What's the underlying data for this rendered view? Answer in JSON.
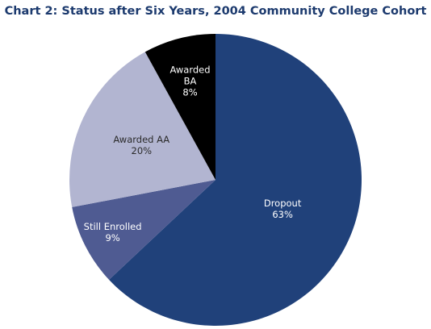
{
  "chart_data": {
    "type": "pie",
    "title": "Chart 2: Status after Six Years, 2004 Community College Cohort",
    "slices": [
      {
        "label": "Dropout",
        "value": 63,
        "value_label": "63%",
        "color": "#20417a",
        "text_color": "#ffffff"
      },
      {
        "label": "Still Enrolled",
        "value": 9,
        "value_label": "9%",
        "color": "#4f5b92",
        "text_color": "#ffffff"
      },
      {
        "label": "Awarded AA",
        "value": 20,
        "value_label": "20%",
        "color": "#b2b5d1",
        "text_color": "#2b2b2b"
      },
      {
        "label": "Awarded BA",
        "value": 8,
        "value_label": "8%",
        "color": "#000000",
        "text_color": "#ffffff"
      }
    ],
    "start": "12 o'clock",
    "direction": "clockwise",
    "legend": "none"
  }
}
